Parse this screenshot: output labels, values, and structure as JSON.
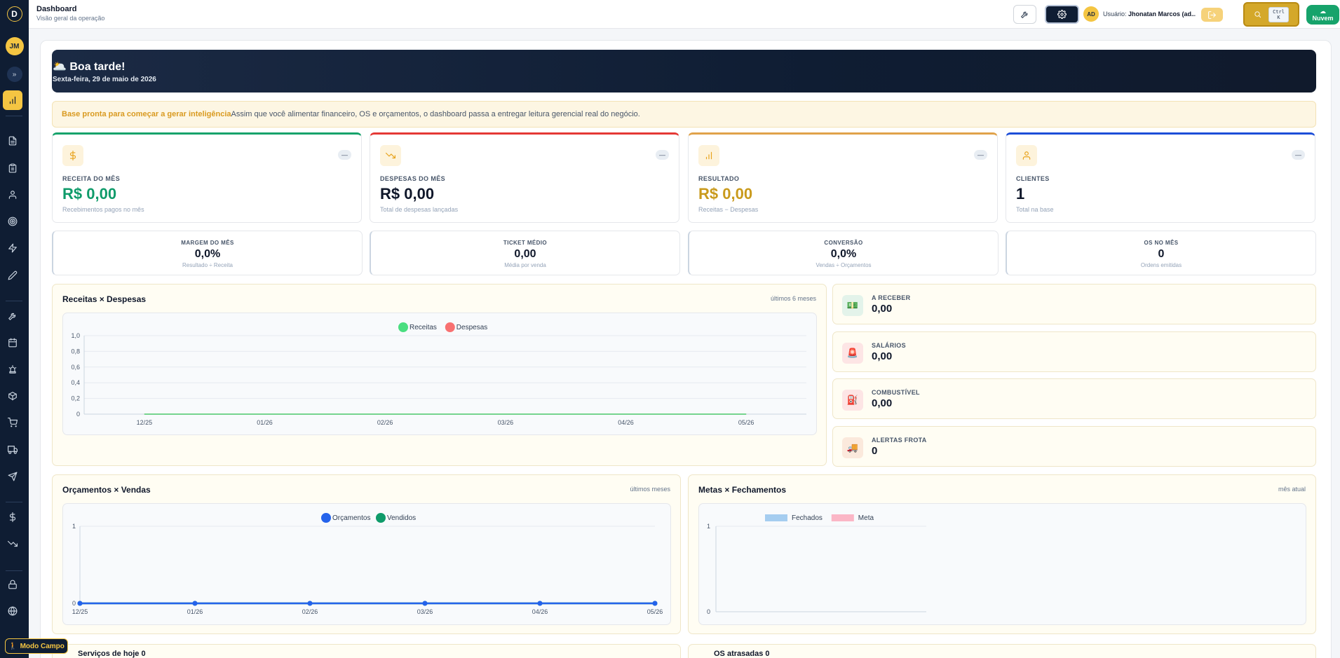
{
  "app": {
    "logo_letter": "D",
    "user_initials": "JM",
    "expand_glyph": "»"
  },
  "sidebar": {
    "items": [
      {
        "name": "sidebar-item-dashboard",
        "icon": "bar-chart-icon",
        "active": true
      },
      {
        "name": "sidebar-item-documents",
        "icon": "file-icon"
      },
      {
        "name": "sidebar-item-clipboard",
        "icon": "clipboard-icon"
      },
      {
        "name": "sidebar-item-users",
        "icon": "user-icon"
      },
      {
        "name": "sidebar-item-targets",
        "icon": "target-icon"
      },
      {
        "name": "sidebar-item-automation",
        "icon": "bolt-icon"
      },
      {
        "name": "sidebar-item-edit",
        "icon": "pencil-icon"
      },
      {
        "name": "sidebar-item-tools",
        "icon": "wrench-icon"
      },
      {
        "name": "sidebar-item-calendar",
        "icon": "calendar-icon"
      },
      {
        "name": "sidebar-item-alerts",
        "icon": "siren-icon"
      },
      {
        "name": "sidebar-item-inventory",
        "icon": "box-icon"
      },
      {
        "name": "sidebar-item-shop",
        "icon": "cart-icon"
      },
      {
        "name": "sidebar-item-fleet",
        "icon": "truck-icon"
      },
      {
        "name": "sidebar-item-routes",
        "icon": "send-icon"
      },
      {
        "name": "sidebar-item-finance",
        "icon": "dollar-icon"
      },
      {
        "name": "sidebar-item-expenses",
        "icon": "trending-down-icon"
      },
      {
        "name": "sidebar-item-security",
        "icon": "lock-icon"
      },
      {
        "name": "sidebar-item-web",
        "icon": "globe-icon"
      }
    ],
    "modo_campo": "Modo Campo"
  },
  "header": {
    "title": "Dashboard",
    "subtitle": "Visão geral da operação",
    "avatar": "AD",
    "user_prefix": "Usuário:",
    "user_name": "Jhonatan Marcos (ad...",
    "kbd_top": "Ctrl",
    "kbd_bottom": "K",
    "cloud_label": "Nuvem",
    "cloud_glyph": "☁"
  },
  "hero": {
    "greeting": "🌥️ Boa tarde!",
    "date": "Sexta-feira, 29 de maio de 2026"
  },
  "notice": {
    "strong": "Base pronta para começar a gerar inteligência",
    "text": "Assim que você alimentar financeiro, OS e orçamentos, o dashboard passa a entregar leitura gerencial real do negócio."
  },
  "kpis": [
    {
      "label": "RECEITA DO MÊS",
      "value": "R$ 0,00",
      "sub": "Recebimentos pagos no mês",
      "pill": "—",
      "color": "#0f9b6a",
      "bar": "#16a36b",
      "icon": "dollar-icon"
    },
    {
      "label": "DESPESAS DO MÊS",
      "value": "R$ 0,00",
      "sub": "Total de despesas lançadas",
      "pill": "—",
      "color": "#0f172a",
      "bar": "#e53935",
      "icon": "trending-down-icon"
    },
    {
      "label": "RESULTADO",
      "value": "R$ 0,00",
      "sub": "Receitas − Despesas",
      "pill": "—",
      "color": "#c99a1c",
      "bar": "#e0a24a",
      "icon": "bar-chart-icon"
    },
    {
      "label": "CLIENTES",
      "value": "1",
      "sub": "Total na base",
      "pill": "—",
      "color": "#0f172a",
      "bar": "#1d4ed8",
      "icon": "user-icon"
    }
  ],
  "metrics": [
    {
      "label": "MARGEM DO MÊS",
      "value": "0,0%",
      "sub": "Resultado ÷ Receita"
    },
    {
      "label": "TICKET MÉDIO",
      "value": "0,00",
      "sub": "Média por venda"
    },
    {
      "label": "CONVERSÃO",
      "value": "0,0%",
      "sub": "Vendas ÷ Orçamentos"
    },
    {
      "label": "OS NO MÊS",
      "value": "0",
      "sub": "Ordens emitidas"
    }
  ],
  "side_cards": [
    {
      "label": "A RECEBER",
      "value": "0,00",
      "icon": "money-icon",
      "glyph": "💵",
      "bg": "#e3f3ea"
    },
    {
      "label": "SALÁRIOS",
      "value": "0,00",
      "icon": "siren-icon",
      "glyph": "🚨",
      "bg": "#fde5e5"
    },
    {
      "label": "COMBUSTÍVEL",
      "value": "0,00",
      "icon": "fuel-icon",
      "glyph": "⛽",
      "bg": "#fde5e5"
    },
    {
      "label": "ALERTAS FROTA",
      "value": "0",
      "icon": "truck-icon",
      "glyph": "🚚",
      "bg": "#fbe9dc"
    }
  ],
  "bottom": {
    "left": "Serviços de hoje 0",
    "right": "OS atrasadas 0"
  },
  "chart_data": [
    {
      "type": "line",
      "title": "Receitas × Despesas",
      "range_label": "últimos 6 meses",
      "categories": [
        "12/25",
        "01/26",
        "02/26",
        "03/26",
        "04/26",
        "05/26"
      ],
      "series": [
        {
          "name": "Receitas",
          "values": [
            0,
            0,
            0,
            0,
            0,
            0
          ],
          "color": "#4ade80"
        },
        {
          "name": "Despesas",
          "values": [
            0,
            0,
            0,
            0,
            0,
            0
          ],
          "color": "#f87171"
        }
      ],
      "ylim": [
        0,
        1
      ],
      "yticks": [
        "1,0",
        "0,8",
        "0,6",
        "0,4",
        "0,2",
        "0"
      ],
      "legend": "top-center",
      "grid": true
    },
    {
      "type": "line",
      "title": "Orçamentos × Vendas",
      "range_label": "últimos meses",
      "categories": [
        "12/25",
        "01/26",
        "02/26",
        "03/26",
        "04/26",
        "05/26"
      ],
      "series": [
        {
          "name": "Orçamentos",
          "values": [
            0,
            0,
            0,
            0,
            0,
            0
          ],
          "color": "#2563eb"
        },
        {
          "name": "Vendidos",
          "values": [
            0,
            0,
            0,
            0,
            0,
            0
          ],
          "color": "#0f9b6a"
        }
      ],
      "ylim": [
        0,
        1
      ],
      "yticks": [
        "1",
        "0"
      ],
      "legend": "top-center",
      "grid": true
    },
    {
      "type": "bar",
      "title": "Metas × Fechamentos",
      "range_label": "mês atual",
      "categories": [],
      "series": [
        {
          "name": "Fechados",
          "values": [],
          "color": "#a5cdf0"
        },
        {
          "name": "Meta",
          "values": [],
          "color": "#fbb6c6"
        }
      ],
      "ylim": [
        0,
        1
      ],
      "yticks": [
        "1",
        "0"
      ],
      "legend": "top-left",
      "grid": true
    }
  ]
}
